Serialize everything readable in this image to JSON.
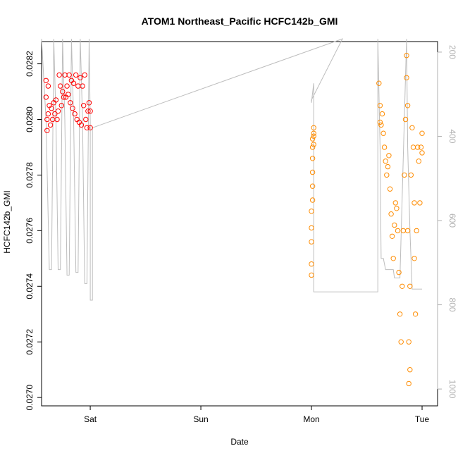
{
  "chart_data": {
    "type": "scatter",
    "title": "ATOM1 Northeast_Pacific HCFC142b_GMI",
    "xlabel": "Date",
    "ylabel": "HCFC142b_GMI",
    "x_ticks": [
      "Sat",
      "Sun",
      "Mon",
      "Tue"
    ],
    "x_range_days": [
      -0.44,
      3.14
    ],
    "ylim": [
      0.02697,
      0.02828
    ],
    "y_ticks": [
      "0.0270",
      "0.0272",
      "0.0274",
      "0.0276",
      "0.0278",
      "0.0280",
      "0.0282"
    ],
    "y2_ticks": [
      "200",
      "400",
      "600",
      "800",
      "1000"
    ],
    "y2_range": [
      1040,
      175
    ],
    "y2_reversed": true,
    "colors": {
      "series_red": "#ff0000",
      "series_orange": "#ff8c00",
      "pressure_line": "#bdbdbd",
      "right_axis": "#b0b0b0"
    },
    "series": [
      {
        "color": "red",
        "points": [
          [
            -0.4,
            0.02814
          ],
          [
            -0.4,
            0.02808
          ],
          [
            -0.39,
            0.028
          ],
          [
            -0.39,
            0.02796
          ],
          [
            -0.38,
            0.02802
          ],
          [
            -0.38,
            0.02812
          ],
          [
            -0.37,
            0.02805
          ],
          [
            -0.36,
            0.02798
          ],
          [
            -0.35,
            0.02804
          ],
          [
            -0.34,
            0.028
          ],
          [
            -0.33,
            0.02806
          ],
          [
            -0.32,
            0.02802
          ],
          [
            -0.31,
            0.02807
          ],
          [
            -0.3,
            0.028
          ],
          [
            -0.29,
            0.02803
          ],
          [
            -0.28,
            0.02816
          ],
          [
            -0.27,
            0.02812
          ],
          [
            -0.26,
            0.02805
          ],
          [
            -0.25,
            0.0281
          ],
          [
            -0.24,
            0.02808
          ],
          [
            -0.23,
            0.02816
          ],
          [
            -0.22,
            0.02808
          ],
          [
            -0.21,
            0.02812
          ],
          [
            -0.2,
            0.02809
          ],
          [
            -0.19,
            0.02816
          ],
          [
            -0.18,
            0.02806
          ],
          [
            -0.17,
            0.02814
          ],
          [
            -0.16,
            0.02804
          ],
          [
            -0.15,
            0.02813
          ],
          [
            -0.14,
            0.02802
          ],
          [
            -0.13,
            0.02816
          ],
          [
            -0.12,
            0.028
          ],
          [
            -0.11,
            0.02812
          ],
          [
            -0.1,
            0.02799
          ],
          [
            -0.09,
            0.02815
          ],
          [
            -0.08,
            0.02798
          ],
          [
            -0.07,
            0.02812
          ],
          [
            -0.06,
            0.02805
          ],
          [
            -0.05,
            0.02816
          ],
          [
            -0.04,
            0.028
          ],
          [
            -0.03,
            0.02797
          ],
          [
            -0.02,
            0.02803
          ],
          [
            -0.01,
            0.02806
          ],
          [
            0.0,
            0.02797
          ],
          [
            0.0,
            0.02803
          ]
        ]
      },
      {
        "color": "orange",
        "points": [
          [
            2.0,
            0.02744
          ],
          [
            2.0,
            0.02748
          ],
          [
            2.0,
            0.02756
          ],
          [
            2.0,
            0.02761
          ],
          [
            2.0,
            0.02767
          ],
          [
            2.01,
            0.02771
          ],
          [
            2.01,
            0.02776
          ],
          [
            2.01,
            0.02781
          ],
          [
            2.01,
            0.02786
          ],
          [
            2.01,
            0.0279
          ],
          [
            2.01,
            0.02793
          ],
          [
            2.02,
            0.02795
          ],
          [
            2.02,
            0.02797
          ],
          [
            2.02,
            0.02794
          ],
          [
            2.02,
            0.02791
          ],
          [
            2.61,
            0.02813
          ],
          [
            2.62,
            0.02805
          ],
          [
            2.62,
            0.02799
          ],
          [
            2.63,
            0.02798
          ],
          [
            2.64,
            0.02802
          ],
          [
            2.65,
            0.02795
          ],
          [
            2.66,
            0.0279
          ],
          [
            2.67,
            0.02785
          ],
          [
            2.68,
            0.0278
          ],
          [
            2.69,
            0.02783
          ],
          [
            2.7,
            0.02787
          ],
          [
            2.71,
            0.02775
          ],
          [
            2.72,
            0.02766
          ],
          [
            2.73,
            0.02758
          ],
          [
            2.74,
            0.0275
          ],
          [
            2.75,
            0.02762
          ],
          [
            2.76,
            0.0277
          ],
          [
            2.77,
            0.02768
          ],
          [
            2.78,
            0.0276
          ],
          [
            2.79,
            0.02745
          ],
          [
            2.8,
            0.0273
          ],
          [
            2.81,
            0.0272
          ],
          [
            2.82,
            0.0274
          ],
          [
            2.83,
            0.0276
          ],
          [
            2.84,
            0.0278
          ],
          [
            2.85,
            0.028
          ],
          [
            2.86,
            0.02815
          ],
          [
            2.86,
            0.02823
          ],
          [
            2.87,
            0.02805
          ],
          [
            2.87,
            0.0276
          ],
          [
            2.88,
            0.0272
          ],
          [
            2.88,
            0.02705
          ],
          [
            2.89,
            0.0271
          ],
          [
            2.89,
            0.0274
          ],
          [
            2.9,
            0.0278
          ],
          [
            2.91,
            0.02797
          ],
          [
            2.92,
            0.0279
          ],
          [
            2.93,
            0.0277
          ],
          [
            2.93,
            0.0275
          ],
          [
            2.94,
            0.0273
          ],
          [
            2.95,
            0.0276
          ],
          [
            2.96,
            0.0279
          ],
          [
            2.97,
            0.02785
          ],
          [
            2.98,
            0.0277
          ],
          [
            2.99,
            0.0279
          ],
          [
            3.0,
            0.02795
          ],
          [
            3.0,
            0.02788
          ]
        ]
      }
    ],
    "pressure_line": [
      [
        -0.44,
        0.02829
      ],
      [
        -0.4,
        0.028
      ],
      [
        -0.37,
        0.02746
      ],
      [
        -0.35,
        0.02746
      ],
      [
        -0.33,
        0.02829
      ],
      [
        -0.31,
        0.028
      ],
      [
        -0.29,
        0.02746
      ],
      [
        -0.27,
        0.02746
      ],
      [
        -0.25,
        0.02829
      ],
      [
        -0.23,
        0.028
      ],
      [
        -0.21,
        0.02744
      ],
      [
        -0.19,
        0.02744
      ],
      [
        -0.17,
        0.02829
      ],
      [
        -0.15,
        0.028
      ],
      [
        -0.13,
        0.02745
      ],
      [
        -0.11,
        0.02745
      ],
      [
        -0.09,
        0.02829
      ],
      [
        -0.07,
        0.028
      ],
      [
        -0.05,
        0.02741
      ],
      [
        -0.03,
        0.02741
      ],
      [
        -0.01,
        0.02829
      ],
      [
        0.0,
        0.02799
      ],
      [
        0.0,
        0.02735
      ],
      [
        0.02,
        0.02735
      ],
      [
        0.02,
        0.02797
      ],
      [
        2.28,
        0.02829
      ],
      [
        2.0,
        0.02807
      ],
      [
        2.0,
        0.02806
      ],
      [
        2.02,
        0.02813
      ],
      [
        2.02,
        0.02738
      ],
      [
        2.6,
        0.02738
      ],
      [
        2.6,
        0.02829
      ],
      [
        2.62,
        0.0279
      ],
      [
        2.63,
        0.0275
      ],
      [
        2.65,
        0.0275
      ],
      [
        2.67,
        0.02746
      ],
      [
        2.74,
        0.02746
      ],
      [
        2.75,
        0.02743
      ],
      [
        2.8,
        0.02743
      ],
      [
        2.86,
        0.02829
      ],
      [
        2.87,
        0.0279
      ],
      [
        2.89,
        0.0276
      ],
      [
        2.91,
        0.02739
      ],
      [
        3.0,
        0.02739
      ]
    ]
  }
}
